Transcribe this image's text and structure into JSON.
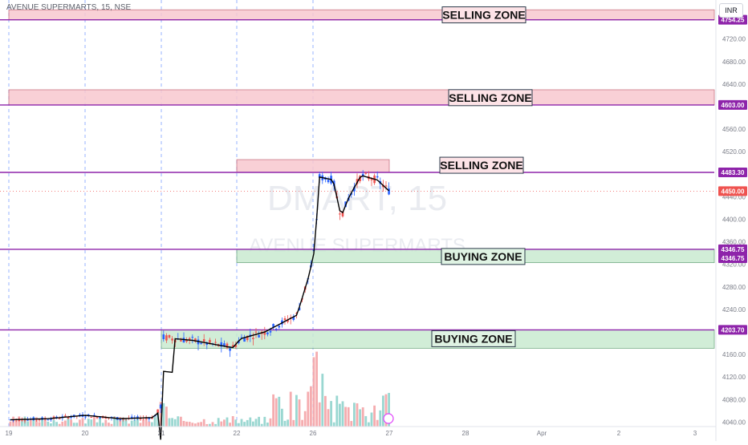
{
  "header": {
    "symbol": "AVENUE SUPERMARTS, 15, NSE",
    "currency": "INR"
  },
  "watermark": {
    "ticker": "DMART, 15",
    "name": "AVENUE SUPERMARTS"
  },
  "colors": {
    "selling_zone": "#f9c8cf",
    "buying_zone": "#c9ead1",
    "level_line": "#8e24aa",
    "up": "#26a69a",
    "down": "#ef5350",
    "candle_blue": "#2962ff",
    "vline": "#2962ff"
  },
  "chart_data": {
    "type": "candlestick",
    "x_ticks": [
      "19",
      "20",
      "21",
      "22",
      "26",
      "27",
      "28",
      "Apr",
      "2",
      "3"
    ],
    "y_ticks": [
      4040,
      4080,
      4120,
      4160,
      4200,
      4240,
      4280,
      4320,
      4360,
      4400,
      4440,
      4480,
      4520,
      4560,
      4600,
      4640,
      4680,
      4720
    ],
    "ylim": [
      4032,
      4778
    ],
    "zones": [
      {
        "label": "SELLING ZONE",
        "type": "sell",
        "low": 4754.25,
        "high": 4772,
        "x_start": "19",
        "x_end": "3"
      },
      {
        "label": "SELLING ZONE",
        "type": "sell",
        "low": 4603.0,
        "high": 4630,
        "x_start": "19",
        "x_end": "3"
      },
      {
        "label": "SELLING ZONE",
        "type": "sell",
        "low": 4483.3,
        "high": 4506,
        "x_start": "22",
        "x_end": "27"
      },
      {
        "label": "BUYING ZONE",
        "type": "buy",
        "low": 4323,
        "high": 4346.75,
        "x_start": "22",
        "x_end": "3"
      },
      {
        "label": "BUYING ZONE",
        "type": "buy",
        "low": 4171,
        "high": 4203.7,
        "x_start": "21",
        "x_end": "3"
      }
    ],
    "price_labels": [
      {
        "value": "4754.25",
        "kind": "level"
      },
      {
        "value": "4603.00",
        "kind": "level"
      },
      {
        "value": "4483.30",
        "kind": "level"
      },
      {
        "value": "4450.00",
        "kind": "last"
      },
      {
        "value": "4346.75",
        "kind": "level"
      },
      {
        "value": "4346.75",
        "kind": "level"
      },
      {
        "value": "4203.70",
        "kind": "level"
      }
    ],
    "last_price": 4450.0,
    "price_path": [
      [
        "19",
        4044
      ],
      [
        "20",
        4052
      ],
      [
        "21",
        4048
      ],
      [
        "21",
        4190
      ],
      [
        "22",
        4172
      ],
      [
        "22",
        4195
      ],
      [
        "26",
        4346
      ],
      [
        "26",
        4480
      ],
      [
        "27",
        4460
      ],
      [
        "27",
        4450
      ]
    ]
  }
}
